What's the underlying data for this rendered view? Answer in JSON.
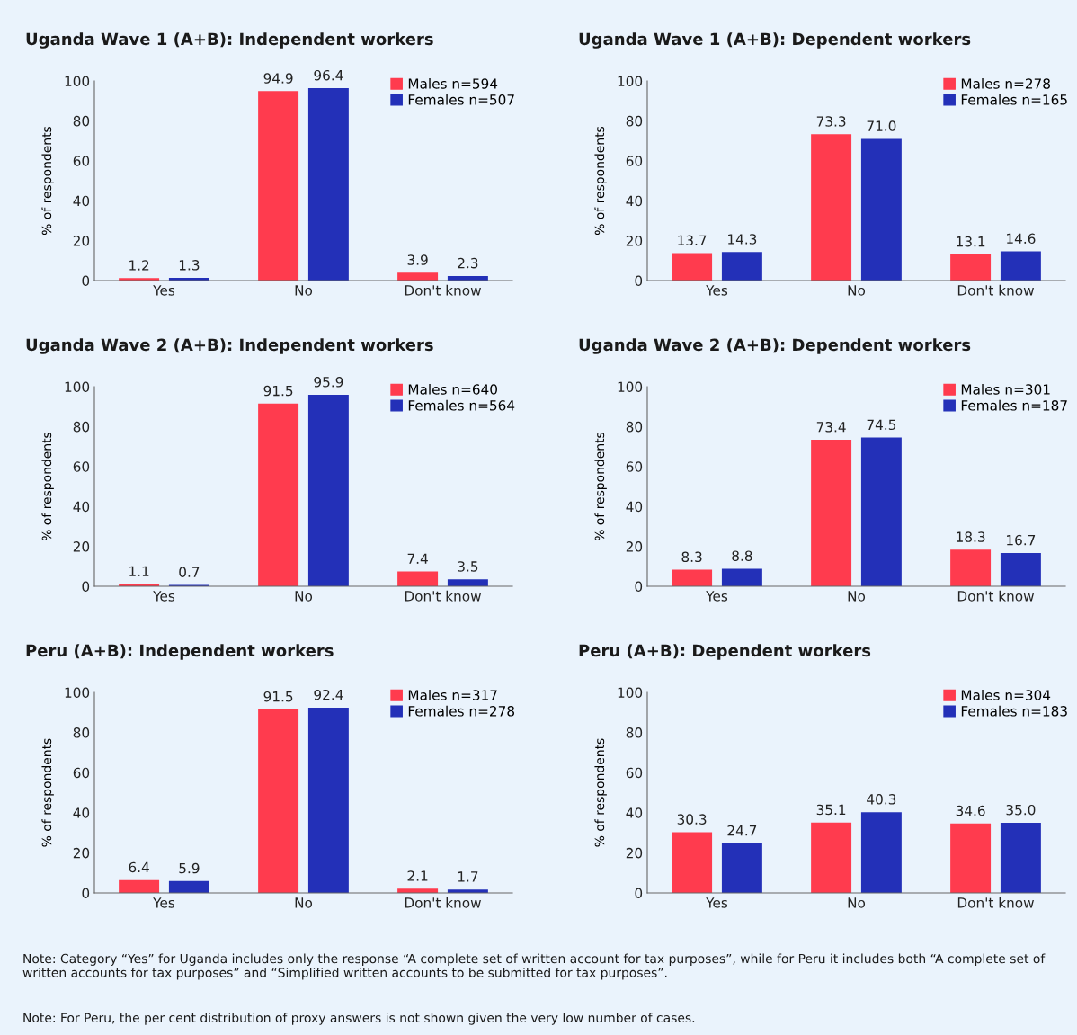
{
  "chart_data": [
    {
      "type": "bar",
      "title": "Uganda Wave 1 (A+B): Independent workers",
      "ylabel": "% of respondents",
      "categories": [
        "Yes",
        "No",
        "Don't know"
      ],
      "ylim": [
        0,
        100
      ],
      "yticks": [
        0,
        20,
        40,
        60,
        80,
        100
      ],
      "legend": "top right",
      "data_labels": true,
      "grid": false,
      "series": [
        {
          "name": "Males n=594",
          "color": "#ff3b4e",
          "values": [
            1.2,
            94.9,
            3.9
          ]
        },
        {
          "name": "Females n=507",
          "color": "#2330b8",
          "values": [
            1.3,
            96.4,
            2.3
          ]
        }
      ]
    },
    {
      "type": "bar",
      "title": "Uganda Wave 1 (A+B): Dependent workers",
      "ylabel": "% of respondents",
      "categories": [
        "Yes",
        "No",
        "Don't know"
      ],
      "ylim": [
        0,
        100
      ],
      "yticks": [
        0,
        20,
        40,
        60,
        80,
        100
      ],
      "legend": "top right",
      "data_labels": true,
      "grid": false,
      "series": [
        {
          "name": "Males n=278",
          "color": "#ff3b4e",
          "values": [
            13.7,
            73.3,
            13.1
          ]
        },
        {
          "name": "Females n=165",
          "color": "#2330b8",
          "values": [
            14.3,
            71.0,
            14.6
          ],
          "value_labels": [
            "14.3",
            "71.0",
            "14.6"
          ]
        }
      ]
    },
    {
      "type": "bar",
      "title": "Uganda Wave 2 (A+B): Independent workers",
      "ylabel": "% of respondents",
      "categories": [
        "Yes",
        "No",
        "Don't know"
      ],
      "ylim": [
        0,
        100
      ],
      "yticks": [
        0,
        20,
        40,
        60,
        80,
        100
      ],
      "legend": "top right",
      "data_labels": true,
      "grid": false,
      "series": [
        {
          "name": "Males n=640",
          "color": "#ff3b4e",
          "values": [
            1.1,
            91.5,
            7.4
          ]
        },
        {
          "name": "Females n=564",
          "color": "#2330b8",
          "values": [
            0.7,
            95.9,
            3.5
          ]
        }
      ]
    },
    {
      "type": "bar",
      "title": "Uganda Wave 2 (A+B): Dependent workers",
      "ylabel": "% of respondents",
      "categories": [
        "Yes",
        "No",
        "Don't know"
      ],
      "ylim": [
        0,
        100
      ],
      "yticks": [
        0,
        20,
        40,
        60,
        80,
        100
      ],
      "legend": "top right",
      "data_labels": true,
      "grid": false,
      "series": [
        {
          "name": "Males n=301",
          "color": "#ff3b4e",
          "values": [
            8.3,
            73.4,
            18.3
          ]
        },
        {
          "name": "Females n=187",
          "color": "#2330b8",
          "values": [
            8.8,
            74.5,
            16.7
          ]
        }
      ]
    },
    {
      "type": "bar",
      "title": "Peru (A+B): Independent workers",
      "ylabel": "% of respondents",
      "categories": [
        "Yes",
        "No",
        "Don't know"
      ],
      "ylim": [
        0,
        100
      ],
      "yticks": [
        0,
        20,
        40,
        60,
        80,
        100
      ],
      "legend": "top right",
      "data_labels": true,
      "grid": false,
      "series": [
        {
          "name": "Males n=317",
          "color": "#ff3b4e",
          "values": [
            6.4,
            91.5,
            2.1
          ]
        },
        {
          "name": "Females n=278",
          "color": "#2330b8",
          "values": [
            5.9,
            92.4,
            1.7
          ]
        }
      ]
    },
    {
      "type": "bar",
      "title": "Peru (A+B): Dependent workers",
      "ylabel": "% of respondents",
      "categories": [
        "Yes",
        "No",
        "Don't know"
      ],
      "ylim": [
        0,
        100
      ],
      "yticks": [
        0,
        20,
        40,
        60,
        80,
        100
      ],
      "legend": "top right",
      "data_labels": true,
      "grid": false,
      "series": [
        {
          "name": "Males n=304",
          "color": "#ff3b4e",
          "values": [
            30.3,
            35.1,
            34.6
          ]
        },
        {
          "name": "Females n=183",
          "color": "#2330b8",
          "values": [
            24.7,
            40.3,
            35.0
          ],
          "value_labels": [
            "24.7",
            "40.3",
            "35.0"
          ]
        }
      ],
      "annotations": [
        "Note: Category “Yes” for Uganda includes only the response “A complete set of written account for tax purposes”, while for Peru it includes both “A complete set of written accounts for tax purposes” and “Simplified written accounts to be submitted for tax purposes”.",
        "Note: For Peru, the per cent distribution of proxy answers is not shown given the very low number of cases."
      ]
    }
  ]
}
